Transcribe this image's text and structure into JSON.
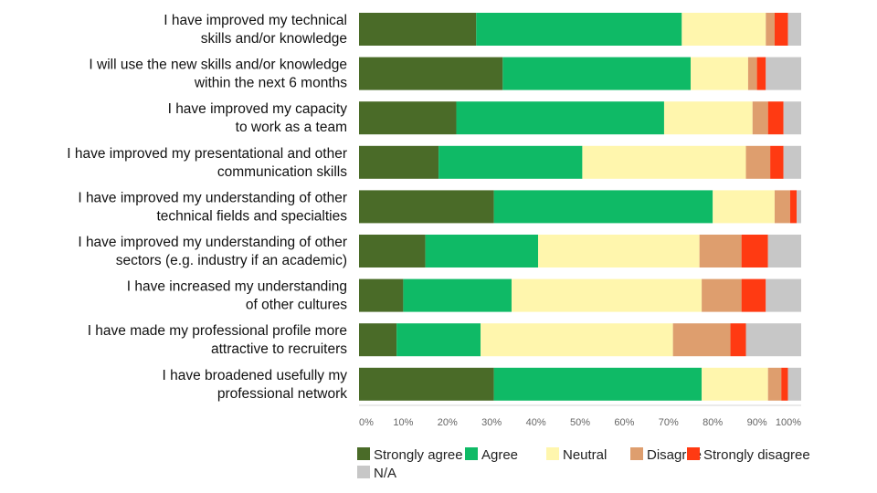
{
  "chart_data": {
    "type": "bar",
    "orientation": "horizontal",
    "stacked": true,
    "percent": true,
    "title": "",
    "xlabel": "",
    "ylabel": "",
    "xlim": [
      0,
      100
    ],
    "ticks": [
      "0%",
      "10%",
      "20%",
      "30%",
      "40%",
      "50%",
      "60%",
      "70%",
      "80%",
      "90%",
      "100%"
    ],
    "categories": [
      [
        "I have improved my technical",
        "skills and/or knowledge"
      ],
      [
        "I will use the new skills and/or knowledge",
        "within the next 6 months"
      ],
      [
        "I have improved my capacity",
        "to work as a team"
      ],
      [
        "I have improved my presentational and other",
        "communication skills"
      ],
      [
        "I have improved my understanding of other",
        "technical fields and specialties"
      ],
      [
        "I have improved my understanding of other",
        "sectors (e.g. industry if an academic)"
      ],
      [
        "I have increased my understanding",
        "of other cultures"
      ],
      [
        "I have made my professional profile more",
        "attractive to recruiters"
      ],
      [
        "I have broadened usefully my",
        "professional network"
      ]
    ],
    "series": [
      {
        "name": "Strongly agree",
        "color": "#4a6b28",
        "values": [
          26.5,
          32.5,
          22,
          18,
          30.5,
          15,
          10,
          8.5,
          30.5
        ]
      },
      {
        "name": "Agree",
        "color": "#0fba66",
        "values": [
          46.5,
          42.5,
          47,
          32.5,
          49.5,
          25.5,
          24.5,
          19,
          47
        ]
      },
      {
        "name": "Neutral",
        "color": "#fff6ad",
        "values": [
          19,
          13,
          20,
          37,
          14,
          36.5,
          43,
          43.5,
          15
        ]
      },
      {
        "name": "Disagree",
        "color": "#de9e6e",
        "values": [
          2,
          2,
          3.5,
          5.5,
          3.5,
          9.5,
          9,
          13,
          3
        ]
      },
      {
        "name": "Strongly disagree",
        "color": "#ff3a12",
        "values": [
          3,
          2,
          3.5,
          3,
          1.5,
          6,
          5.5,
          3.5,
          1.5
        ]
      },
      {
        "name": "N/A",
        "color": "#c7c7c7",
        "values": [
          3,
          8,
          4,
          4,
          1,
          7.5,
          8,
          12.5,
          3
        ]
      }
    ],
    "grid": false,
    "legend_position": "bottom"
  }
}
